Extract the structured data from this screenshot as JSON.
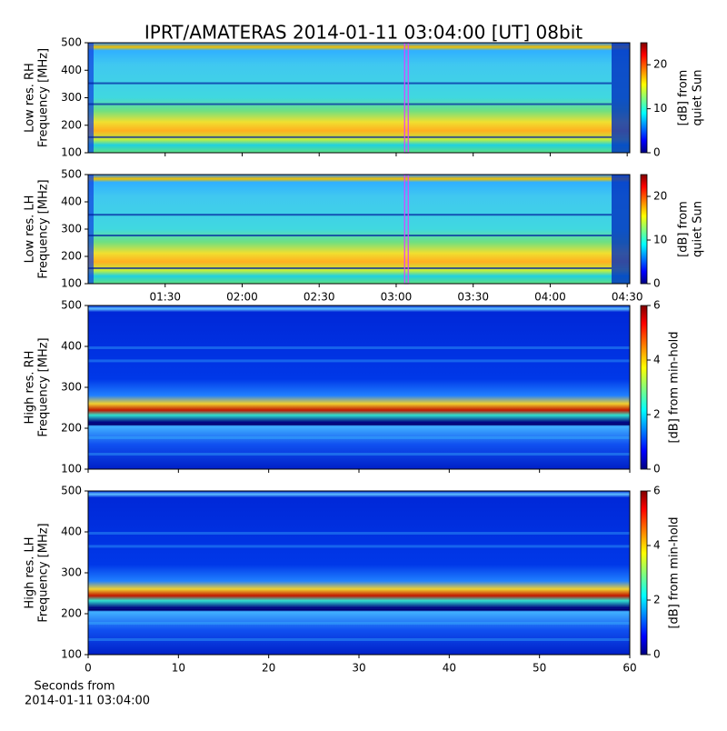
{
  "chart_data": [
    {
      "type": "heatmap",
      "title": "IPRT/AMATERAS 2014-01-11 03:04:00 [UT]   08bit",
      "ylabel": [
        "Low res. RH",
        "Frequency [MHz]"
      ],
      "xlim": [
        "01:00",
        "04:31"
      ],
      "xticks": [
        "01:30",
        "02:00",
        "02:30",
        "03:00",
        "03:30",
        "04:00",
        "04:30"
      ],
      "show_xtick_labels": false,
      "ylim": [
        100,
        500
      ],
      "yticks": [
        100,
        200,
        300,
        400,
        500
      ],
      "marker_x": "03:04",
      "marker_color": "#e040ff",
      "colormap": "jet",
      "clim": [
        0,
        25
      ],
      "cticks": [
        0,
        10,
        20
      ],
      "clabel": [
        "[dB] from",
        "quiet Sun"
      ],
      "style": "low"
    },
    {
      "type": "heatmap",
      "ylabel": [
        "Low res. LH",
        "Frequency [MHz]"
      ],
      "xlim": [
        "01:00",
        "04:31"
      ],
      "xticks": [
        "01:30",
        "02:00",
        "02:30",
        "03:00",
        "03:30",
        "04:00",
        "04:30"
      ],
      "show_xtick_labels": true,
      "ylim": [
        100,
        500
      ],
      "yticks": [
        100,
        200,
        300,
        400,
        500
      ],
      "marker_x": "03:04",
      "marker_color": "#e040ff",
      "colormap": "jet",
      "clim": [
        0,
        25
      ],
      "cticks": [
        0,
        10,
        20
      ],
      "clabel": [
        "[dB] from",
        "quiet Sun"
      ],
      "style": "low"
    },
    {
      "type": "heatmap",
      "ylabel": [
        "High res. RH",
        "Frequency [MHz]"
      ],
      "xlim": [
        0,
        60
      ],
      "xticks": [
        0,
        10,
        20,
        30,
        40,
        50,
        60
      ],
      "show_xtick_labels": false,
      "ylim": [
        100,
        500
      ],
      "yticks": [
        100,
        200,
        300,
        400,
        500
      ],
      "colormap": "jet",
      "clim": [
        0,
        6
      ],
      "cticks": [
        0,
        2,
        4,
        6
      ],
      "clabel": [
        "[dB] from min-hold"
      ],
      "style": "high"
    },
    {
      "type": "heatmap",
      "ylabel": [
        "High res. LH",
        "Frequency [MHz]"
      ],
      "xlim": [
        0,
        60
      ],
      "xticks": [
        0,
        10,
        20,
        30,
        40,
        50,
        60
      ],
      "show_xtick_labels": true,
      "xlabel": [
        "Seconds from",
        "2014-01-11 03:04:00"
      ],
      "ylim": [
        100,
        500
      ],
      "yticks": [
        100,
        200,
        300,
        400,
        500
      ],
      "colormap": "jet",
      "clim": [
        0,
        6
      ],
      "cticks": [
        0,
        2,
        4,
        6
      ],
      "clabel": [
        "[dB] from min-hold"
      ],
      "style": "high"
    }
  ]
}
